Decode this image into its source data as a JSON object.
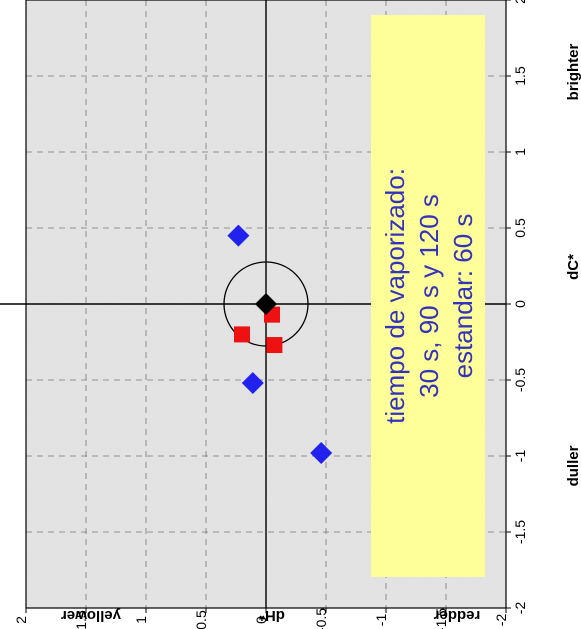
{
  "chart_data": {
    "type": "scatter",
    "title": "",
    "xlabel": "dC*",
    "ylabel": "dH*",
    "x_low_label": "duller",
    "x_high_label": "brighter",
    "y_high_label": "yellower",
    "y_low_label": "redder",
    "xlim": [
      -2,
      2
    ],
    "ylim": [
      -2,
      2
    ],
    "x_ticks": [
      "-2",
      "-1.5",
      "-1",
      "-0.5",
      "0",
      "0.5",
      "1",
      "1.5",
      "2"
    ],
    "y_ticks": [
      "2",
      "1.5",
      "1",
      "0.5",
      "0",
      "-0.5",
      "-1",
      "-1.5",
      "-2"
    ],
    "grid": true,
    "tolerance_circle_radius": 0.35,
    "series": [
      {
        "marker": "diamond",
        "color": "#2222ee",
        "points": [
          {
            "x": 0.45,
            "y": 0.23
          },
          {
            "x": -0.52,
            "y": 0.11
          },
          {
            "x": -0.98,
            "y": -0.46
          }
        ]
      },
      {
        "marker": "square",
        "color": "#ee1111",
        "points": [
          {
            "x": -0.07,
            "y": -0.05
          },
          {
            "x": -0.2,
            "y": 0.2
          },
          {
            "x": -0.27,
            "y": -0.07
          }
        ]
      },
      {
        "marker": "diamond",
        "color": "#000000",
        "points": [
          {
            "x": 0.0,
            "y": 0.0
          }
        ]
      }
    ],
    "annotation": {
      "lines": [
        "tiempo de vaporizado:",
        "30 s, 90 s y 120 s",
        "estandar: 60 s"
      ],
      "background": "#ffff99",
      "color": "#3333bb"
    }
  }
}
